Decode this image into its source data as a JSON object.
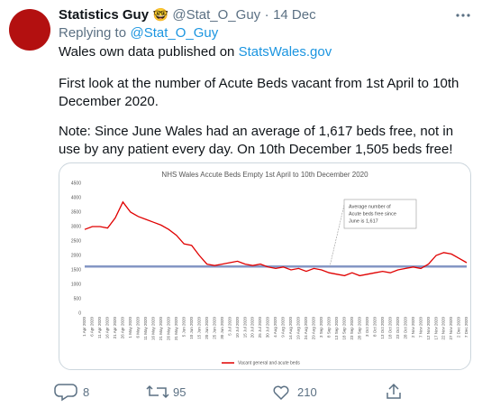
{
  "tweet": {
    "author": {
      "name": "Statistics Guy",
      "emoji": "🤓",
      "handle": "@Stat_O_Guy",
      "separator": "·",
      "date": "14 Dec"
    },
    "reply_to": {
      "label": "Replying to",
      "handle": "@Stat_O_Guy"
    },
    "body": {
      "intro": {
        "text": "Wales own data published on",
        "link": "StatsWales.gov"
      },
      "paragraphs": [
        "First look at the number of Acute Beds vacant from 1st April to 10th December 2020.",
        "Note: Since June Wales had an average of 1,617 beds free, not in use by any patient every day. On 10th December 1,505 beds free!"
      ]
    },
    "actions": {
      "replies": "8",
      "retweets": "95",
      "likes": "210"
    }
  },
  "chart_data": {
    "type": "line",
    "title": "NHS Wales Accute Beds Empty 1st April to 10th December 2020",
    "categories": [
      "1 Apr 2020",
      "6 Apr 2020",
      "11 Apr 2020",
      "16 Apr 2020",
      "21 Apr 2020",
      "26 Apr 2020",
      "1 May 2020",
      "6 May 2020",
      "11 May 2020",
      "16 May 2020",
      "21 May 2020",
      "26 May 2020",
      "31 May 2020",
      "5 Jun 2020",
      "10 Jun 2020",
      "15 Jun 2020",
      "20 Jun 2020",
      "25 Jun 2020",
      "30 Jun 2020",
      "5 Jul 2020",
      "10 Jul 2020",
      "15 Jul 2020",
      "20 Jul 2020",
      "25 Jul 2020",
      "30 Jul 2020",
      "4 Aug 2020",
      "9 Aug 2020",
      "14 Aug 2020",
      "19 Aug 2020",
      "24 Aug 2020",
      "29 Aug 2020",
      "3 Sep 2020",
      "8 Sep 2020",
      "13 Sep 2020",
      "18 Sep 2020",
      "23 Sep 2020",
      "28 Sep 2020",
      "3 Oct 2020",
      "8 Oct 2020",
      "13 Oct 2020",
      "18 Oct 2020",
      "23 Oct 2020",
      "28 Oct 2020",
      "2 Nov 2020",
      "7 Nov 2020",
      "12 Nov 2020",
      "17 Nov 2020",
      "22 Nov 2020",
      "27 Nov 2020",
      "2 Dec 2020",
      "7 Dec 2020"
    ],
    "series": [
      {
        "name": "Vacant general and acute beds",
        "color": "#e00000",
        "values": [
          2900,
          3000,
          3000,
          2950,
          3300,
          3850,
          3500,
          3350,
          3250,
          3150,
          3050,
          2900,
          2700,
          2400,
          2350,
          2000,
          1700,
          1650,
          1700,
          1750,
          1800,
          1700,
          1650,
          1700,
          1600,
          1550,
          1600,
          1500,
          1550,
          1450,
          1550,
          1500,
          1400,
          1350,
          1300,
          1400,
          1300,
          1350,
          1400,
          1450,
          1400,
          1500,
          1550,
          1600,
          1550,
          1700,
          2000,
          2100,
          2050,
          1900,
          1750
        ]
      }
    ],
    "ylim": [
      0,
      4500
    ],
    "yticks": [
      0,
      500,
      1000,
      1500,
      2000,
      2500,
      3000,
      3500,
      4000,
      4500
    ],
    "reference": {
      "value": 1617,
      "color": "#8496c4"
    },
    "annotation": [
      "Average number of",
      "Acute beds free since",
      "June is 1,617"
    ]
  }
}
